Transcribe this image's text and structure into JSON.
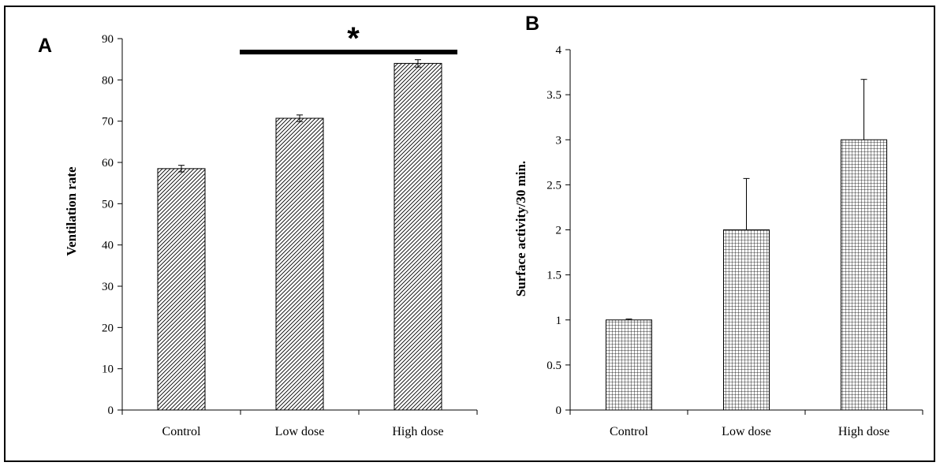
{
  "chart_data": [
    {
      "type": "bar",
      "panel_label": "A",
      "categories": [
        "Control",
        "Low dose",
        "High dose"
      ],
      "values": [
        58.5,
        70.7,
        84.0
      ],
      "errors": [
        0.8,
        0.8,
        0.9
      ],
      "title": "",
      "xlabel": "",
      "ylabel": "Ventilation rate",
      "ylim": [
        0,
        90
      ],
      "yticks": [
        "0",
        "10",
        "20",
        "30",
        "40",
        "50",
        "60",
        "70",
        "80",
        "90"
      ],
      "significance_marker": "*",
      "bar_fill": "diagonal-hatch",
      "grid": false
    },
    {
      "type": "bar",
      "panel_label": "B",
      "categories": [
        "Control",
        "Low dose",
        "High dose"
      ],
      "values": [
        1.0,
        2.0,
        3.0
      ],
      "errors": [
        0.01,
        0.57,
        0.67
      ],
      "title": "",
      "xlabel": "",
      "ylabel": "Surface activity/30 min.",
      "ylim": [
        0,
        4
      ],
      "yticks": [
        "0",
        "0.5",
        "1",
        "1.5",
        "2",
        "2.5",
        "3",
        "3.5",
        "4"
      ],
      "bar_fill": "grid-hatch",
      "grid": false
    }
  ]
}
